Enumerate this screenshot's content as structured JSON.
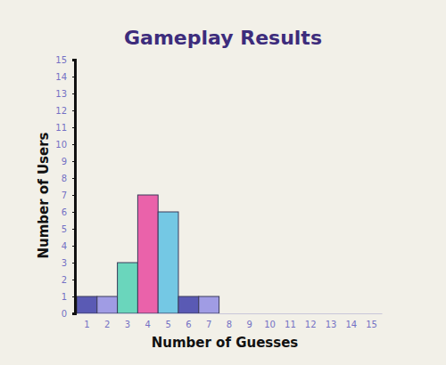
{
  "chart_data": {
    "type": "bar",
    "title": "Gameplay Results",
    "x_label": "Number of Guesses",
    "y_label": "Number of Users",
    "categories": [
      "1",
      "2",
      "3",
      "4",
      "5",
      "6",
      "7",
      "8",
      "9",
      "10",
      "11",
      "12",
      "13",
      "14",
      "15"
    ],
    "values": [
      1,
      1,
      3,
      7,
      6,
      1,
      1,
      0,
      0,
      0,
      0,
      0,
      0,
      0,
      0
    ],
    "colors": [
      "#5a5ab4",
      "#a09ce4",
      "#6ad6bc",
      "#ea62aa",
      "#74c8e4",
      "#5a5ab4",
      "#a09ce4",
      "#6ad6bc",
      "#ea62aa",
      "#74c8e4",
      "#5a5ab4",
      "#a09ce4",
      "#6ad6bc",
      "#ea62aa",
      "#74c8e4"
    ],
    "ylim": [
      0,
      15
    ],
    "yticks": [
      0,
      1,
      2,
      3,
      4,
      5,
      6,
      7,
      8,
      9,
      10,
      11,
      12,
      13,
      14,
      15
    ],
    "grid": false
  }
}
